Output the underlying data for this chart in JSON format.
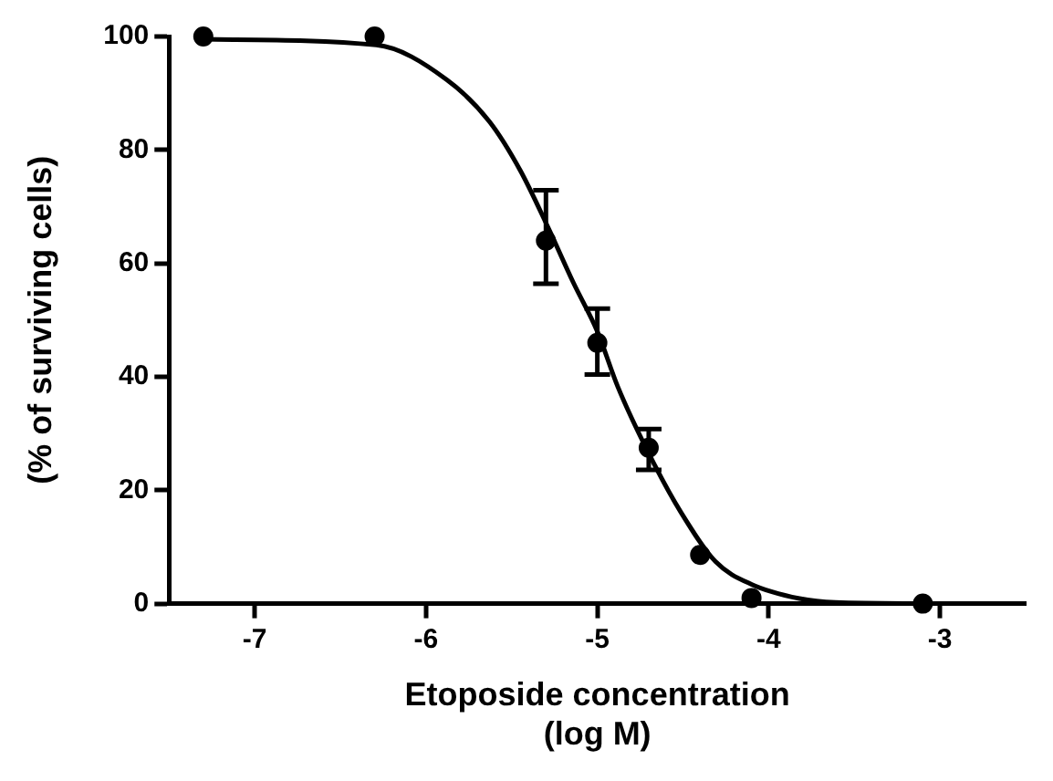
{
  "chart_data": {
    "type": "scatter",
    "xlabel": "Etoposide concentration\n(log M)",
    "ylabel": "(% of surviving cells)",
    "xlim": [
      -7.5,
      -2.5
    ],
    "xticks": [
      -7,
      -6,
      -5,
      -4,
      -3
    ],
    "ylim": [
      0,
      100
    ],
    "yticks": [
      0,
      20,
      40,
      60,
      80,
      100
    ],
    "grid": false,
    "legend": false,
    "marker": "circle",
    "series": [
      {
        "color": "#000000",
        "x": [
          -7.3,
          -6.3,
          -5.3,
          -5.0,
          -4.7,
          -4.4,
          -4.1,
          -3.1
        ],
        "values": [
          100,
          100,
          64,
          46,
          27.5,
          8.6,
          1,
          0
        ],
        "errors": [
          null,
          null,
          [
            56.4,
            72.9
          ],
          [
            40.4,
            52
          ],
          [
            23.6,
            30.8
          ],
          null,
          null,
          null
        ]
      },
      {
        "type": "line",
        "color": "#000000",
        "marker": "none",
        "line_style": "solid",
        "x": [
          -7.29,
          -6.29,
          -5.88,
          -5.63,
          -5.45,
          -5.29,
          -5.14,
          -5.0,
          -4.88,
          -4.69,
          -4.51,
          -4.31,
          -4.1,
          -3.82,
          -3.61,
          -3.08
        ],
        "values": [
          99.5,
          98.5,
          92.4,
          85,
          76.4,
          66.5,
          56.6,
          48,
          38.2,
          25.9,
          16,
          7.4,
          3.4,
          0.9,
          0.2,
          0
        ]
      }
    ]
  }
}
